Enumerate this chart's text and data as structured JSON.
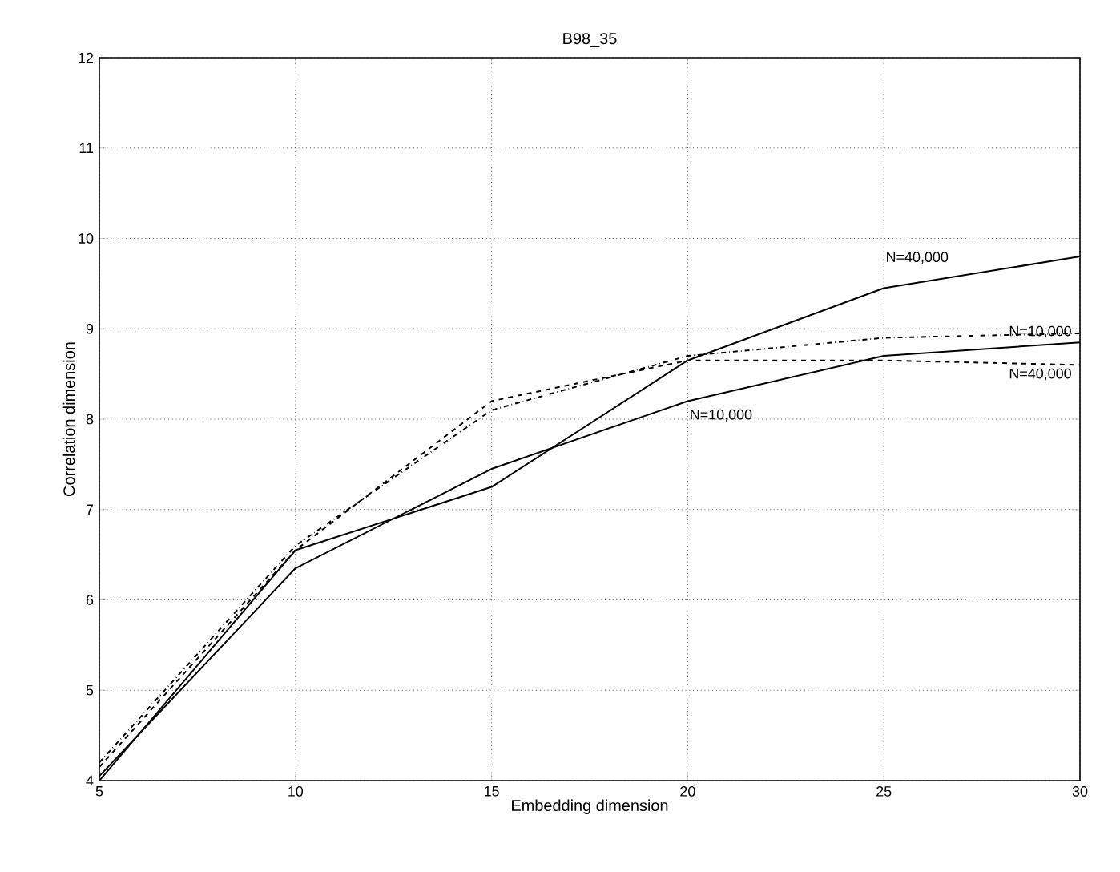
{
  "chart_data": {
    "type": "line",
    "title": "B98_35",
    "xlabel": "Embedding dimension",
    "ylabel": "Correlation dimension",
    "x": [
      5,
      10,
      15,
      20,
      25,
      30
    ],
    "series": [
      {
        "name": "N=40,000",
        "color": "#000000",
        "line_style": "solid",
        "values": [
          4.0,
          6.55,
          7.25,
          8.65,
          9.45,
          9.8
        ]
      },
      {
        "name": "N=10,000",
        "color": "#000000",
        "line_style": "solid",
        "values": [
          4.05,
          6.35,
          7.45,
          8.2,
          8.7,
          8.85
        ]
      },
      {
        "name": "N=10,000",
        "color": "#000000",
        "line_style": "dashdot",
        "values": [
          4.2,
          6.6,
          8.1,
          8.7,
          8.9,
          8.95
        ]
      },
      {
        "name": "N=40,000",
        "color": "#000000",
        "line_style": "dashed",
        "values": [
          4.15,
          6.55,
          8.2,
          8.65,
          8.65,
          8.6
        ]
      }
    ],
    "xlim": [
      5,
      30
    ],
    "xticks": [
      5,
      10,
      15,
      20,
      25,
      30
    ],
    "ylim": [
      4,
      12
    ],
    "yticks": [
      4,
      5,
      6,
      7,
      8,
      9,
      10,
      11,
      12
    ],
    "grid": true,
    "marker": "none"
  }
}
